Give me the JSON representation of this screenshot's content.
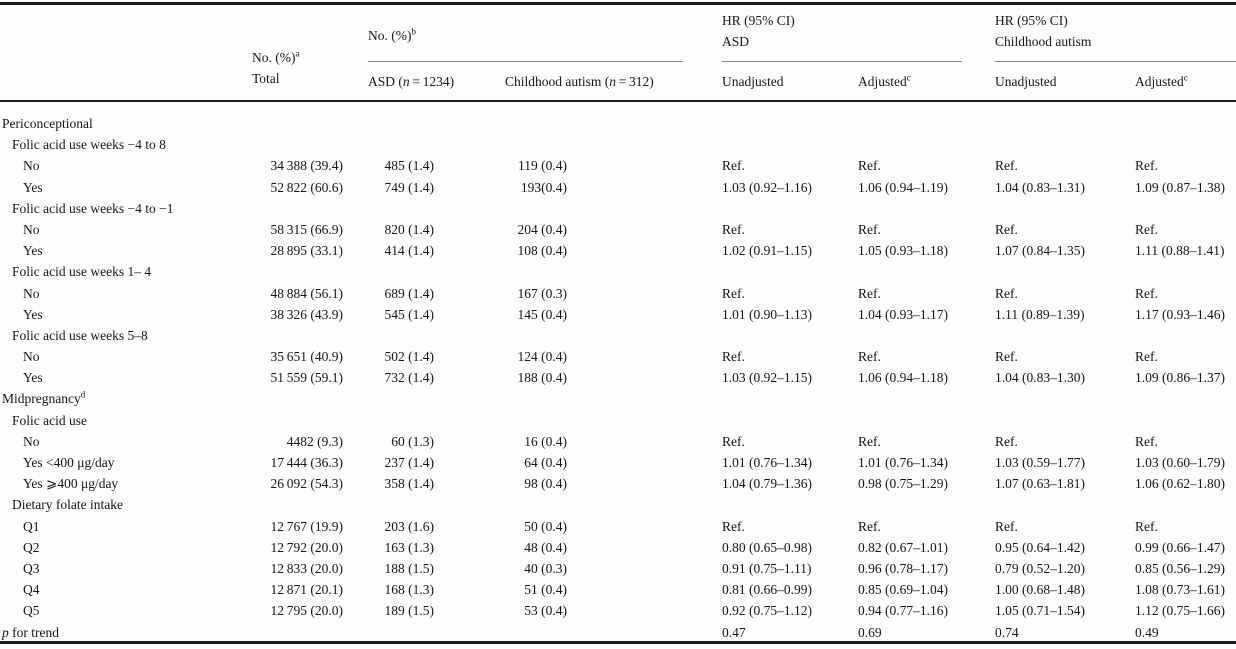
{
  "header": {
    "total_col": {
      "line1": "No. (%)^a",
      "line2": "Total"
    },
    "no_pct_group": {
      "label": "No. (%)^b",
      "asd": {
        "pre": "ASD (",
        "var": "n",
        "post": " = 1234)"
      },
      "autism": {
        "pre": "Childhood autism (",
        "var": "n",
        "post": " = 312)"
      }
    },
    "hr_asd_group": {
      "line1": "HR (95% CI)",
      "line2": "ASD",
      "unadjusted": "Unadjusted",
      "adjusted": "Adjusted^c"
    },
    "hr_autism_group": {
      "line1": "HR (95% CI)",
      "line2": "Childhood autism",
      "unadjusted": "Unadjusted",
      "adjusted": "Adjusted^c"
    }
  },
  "rows": [
    {
      "label": "Periconceptional",
      "indent": 0,
      "trend": false,
      "cells": [
        "",
        "",
        "",
        "",
        "",
        "",
        ""
      ]
    },
    {
      "label": "Folic acid use weeks −4 to 8",
      "indent": 1,
      "trend": false,
      "cells": [
        "",
        "",
        "",
        "",
        "",
        "",
        ""
      ]
    },
    {
      "label": "No",
      "indent": 2,
      "trend": false,
      "cells": [
        "34 388 (39.4)",
        "485 (1.4)",
        "119 (0.4)",
        "Ref.",
        "Ref.",
        "Ref.",
        "Ref."
      ]
    },
    {
      "label": "Yes",
      "indent": 2,
      "trend": false,
      "cells": [
        "52 822 (60.6)",
        "749 (1.4)",
        "193(0.4)",
        "1.03 (0.92–1.16)",
        "1.06 (0.94–1.19)",
        "1.04 (0.83–1.31)",
        "1.09 (0.87–1.38)"
      ]
    },
    {
      "label": "Folic acid use weeks −4 to −1",
      "indent": 1,
      "trend": false,
      "cells": [
        "",
        "",
        "",
        "",
        "",
        "",
        ""
      ]
    },
    {
      "label": "No",
      "indent": 2,
      "trend": false,
      "cells": [
        "58 315 (66.9)",
        "820 (1.4)",
        "204 (0.4)",
        "Ref.",
        "Ref.",
        "Ref.",
        "Ref."
      ]
    },
    {
      "label": "Yes",
      "indent": 2,
      "trend": false,
      "cells": [
        "28 895 (33.1)",
        "414 (1.4)",
        "108 (0.4)",
        "1.02 (0.91–1.15)",
        "1.05 (0.93–1.18)",
        "1.07 (0.84–1.35)",
        "1.11 (0.88–1.41)"
      ]
    },
    {
      "label": "Folic acid use weeks 1– 4",
      "indent": 1,
      "trend": false,
      "cells": [
        "",
        "",
        "",
        "",
        "",
        "",
        ""
      ]
    },
    {
      "label": "No",
      "indent": 2,
      "trend": false,
      "cells": [
        "48 884 (56.1)",
        "689 (1.4)",
        "167 (0.3)",
        "Ref.",
        "Ref.",
        "Ref.",
        "Ref."
      ]
    },
    {
      "label": "Yes",
      "indent": 2,
      "trend": false,
      "cells": [
        "38 326 (43.9)",
        "545 (1.4)",
        "145 (0.4)",
        "1.01 (0.90–1.13)",
        "1.04 (0.93–1.17)",
        "1.11 (0.89–1.39)",
        "1.17 (0.93–1.46)"
      ]
    },
    {
      "label": "Folic acid use weeks 5–8",
      "indent": 1,
      "trend": false,
      "cells": [
        "",
        "",
        "",
        "",
        "",
        "",
        ""
      ]
    },
    {
      "label": "No",
      "indent": 2,
      "trend": false,
      "cells": [
        "35 651 (40.9)",
        "502 (1.4)",
        "124 (0.4)",
        "Ref.",
        "Ref.",
        "Ref.",
        "Ref."
      ]
    },
    {
      "label": "Yes",
      "indent": 2,
      "trend": false,
      "cells": [
        "51 559 (59.1)",
        "732 (1.4)",
        "188 (0.4)",
        "1.03 (0.92–1.15)",
        "1.06 (0.94–1.18)",
        "1.04 (0.83–1.30)",
        "1.09 (0.86–1.37)"
      ]
    },
    {
      "label": "Midpregnancy^d",
      "indent": 0,
      "trend": false,
      "cells": [
        "",
        "",
        "",
        "",
        "",
        "",
        ""
      ]
    },
    {
      "label": "Folic acid use",
      "indent": 1,
      "trend": false,
      "cells": [
        "",
        "",
        "",
        "",
        "",
        "",
        ""
      ]
    },
    {
      "label": "No",
      "indent": 2,
      "trend": false,
      "cells": [
        "4482 (9.3)",
        "60 (1.3)",
        "16 (0.4)",
        "Ref.",
        "Ref.",
        "Ref.",
        "Ref."
      ]
    },
    {
      "label": "Yes <400 μg/day",
      "indent": 2,
      "trend": false,
      "cells": [
        "17 444 (36.3)",
        "237 (1.4)",
        "64 (0.4)",
        "1.01 (0.76–1.34)",
        "1.01 (0.76–1.34)",
        "1.03 (0.59–1.77)",
        "1.03 (0.60–1.79)"
      ]
    },
    {
      "label": "Yes ⩾400 μg/day",
      "indent": 2,
      "trend": false,
      "cells": [
        "26 092 (54.3)",
        "358 (1.4)",
        "98 (0.4)",
        "1.04 (0.79–1.36)",
        "0.98 (0.75–1.29)",
        "1.07 (0.63–1.81)",
        "1.06 (0.62–1.80)"
      ]
    },
    {
      "label": "Dietary folate intake",
      "indent": 1,
      "trend": false,
      "cells": [
        "",
        "",
        "",
        "",
        "",
        "",
        ""
      ]
    },
    {
      "label": "Q1",
      "indent": 2,
      "trend": false,
      "cells": [
        "12 767 (19.9)",
        "203 (1.6)",
        "50 (0.4)",
        "Ref.",
        "Ref.",
        "Ref.",
        "Ref."
      ]
    },
    {
      "label": "Q2",
      "indent": 2,
      "trend": false,
      "cells": [
        "12 792 (20.0)",
        "163 (1.3)",
        "48 (0.4)",
        "0.80 (0.65–0.98)",
        "0.82 (0.67–1.01)",
        "0.95 (0.64–1.42)",
        "0.99 (0.66–1.47)"
      ]
    },
    {
      "label": "Q3",
      "indent": 2,
      "trend": false,
      "cells": [
        "12 833 (20.0)",
        "188 (1.5)",
        "40 (0.3)",
        "0.91 (0.75–1.11)",
        "0.96 (0.78–1.17)",
        "0.79 (0.52–1.20)",
        "0.85 (0.56–1.29)"
      ]
    },
    {
      "label": "Q4",
      "indent": 2,
      "trend": false,
      "cells": [
        "12 871 (20.1)",
        "168 (1.3)",
        "51 (0.4)",
        "0.81 (0.66–0.99)",
        "0.85 (0.69–1.04)",
        "1.00 (0.68–1.48)",
        "1.08 (0.73–1.61)"
      ]
    },
    {
      "label": "Q5",
      "indent": 2,
      "trend": false,
      "cells": [
        "12 795 (20.0)",
        "189 (1.5)",
        "53 (0.4)",
        "0.92 (0.75–1.12)",
        "0.94 (0.77–1.16)",
        "1.05 (0.71–1.54)",
        "1.12 (0.75–1.66)"
      ]
    },
    {
      "label": "p for trend",
      "indent": 0,
      "trend": true,
      "cells": [
        "",
        "",
        "",
        "0.47",
        "0.69",
        "0.74",
        "0.49"
      ]
    }
  ]
}
